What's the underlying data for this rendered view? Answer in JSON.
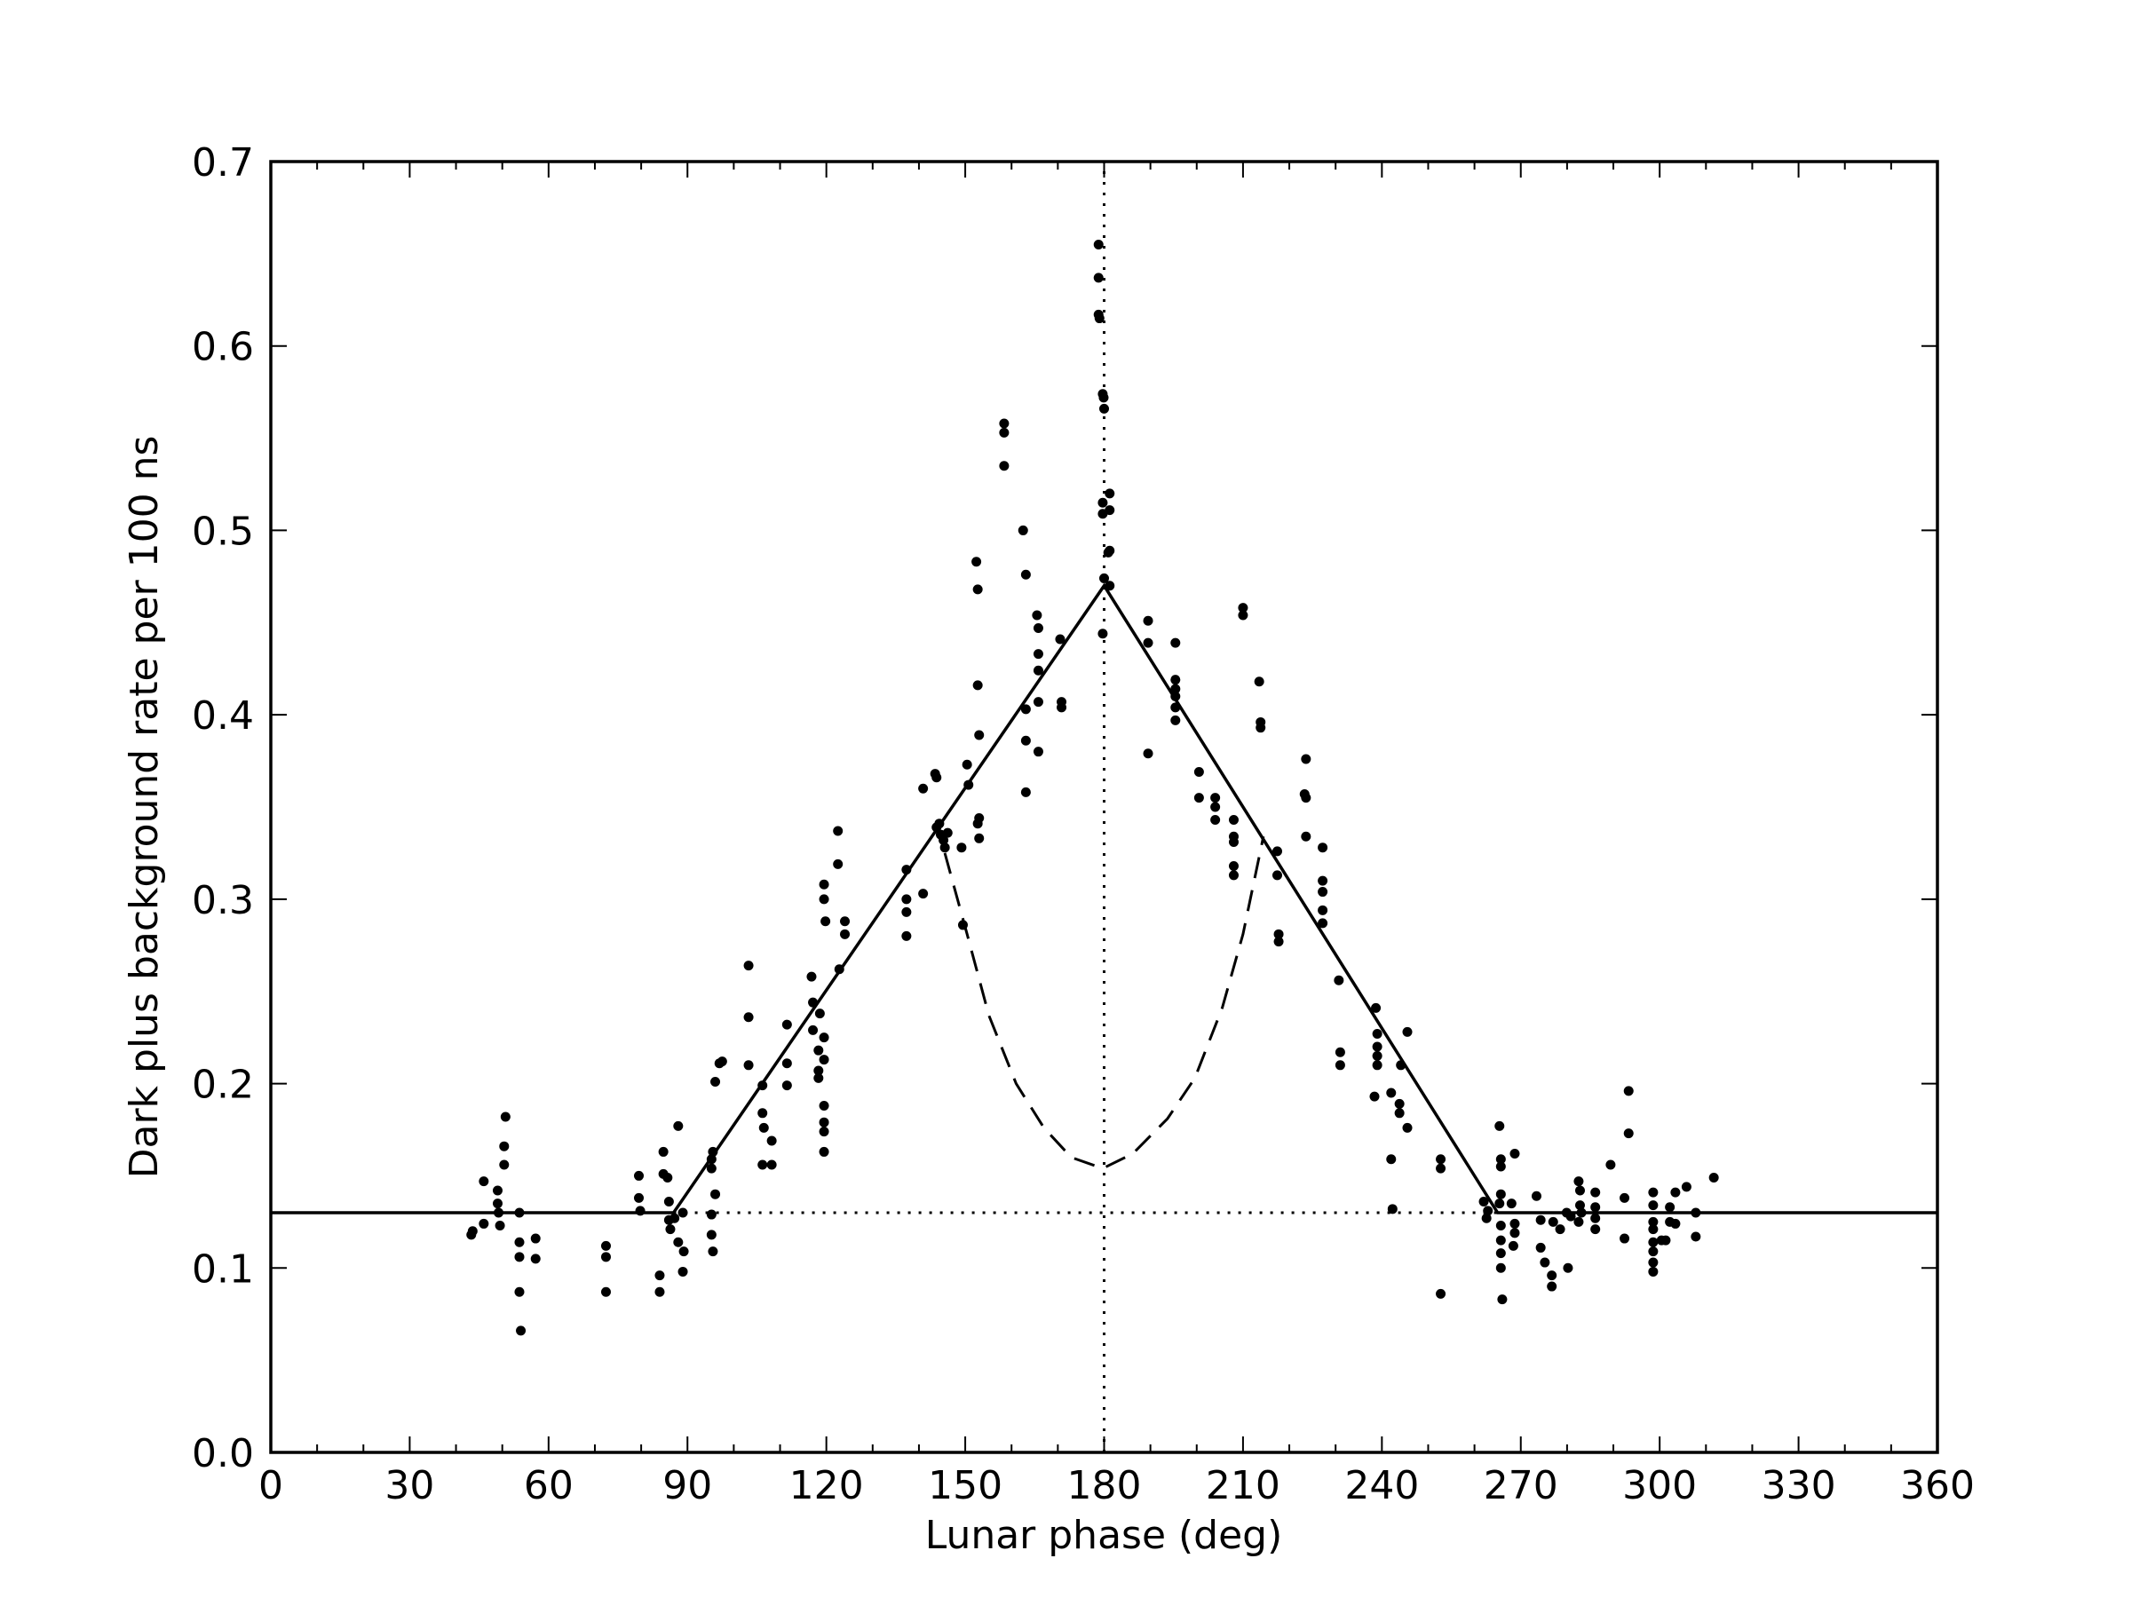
{
  "chart_data": {
    "type": "scatter",
    "xlabel": "Lunar phase (deg)",
    "ylabel": "Dark plus background rate per 100 ns",
    "xlim": [
      0,
      360
    ],
    "ylim": [
      0,
      0.7
    ],
    "xticks": [
      0,
      30,
      60,
      90,
      120,
      150,
      180,
      210,
      240,
      270,
      300,
      330,
      360
    ],
    "xminorticks": [
      10,
      20,
      40,
      50,
      70,
      80,
      100,
      110,
      130,
      140,
      160,
      170,
      190,
      200,
      220,
      230,
      250,
      260,
      280,
      290,
      310,
      320,
      340,
      350
    ],
    "yticks": [
      {
        "value": 0,
        "label": "0.0"
      },
      0.1,
      0.2,
      0.3,
      0.4,
      0.5,
      0.6,
      0.7
    ],
    "series": [
      {
        "style": "points",
        "color": "#000000",
        "x": [
          43.3,
          43.6,
          46,
          46,
          49,
          49,
          49.2,
          49.5,
          50.7,
          50.4,
          50.4,
          53.7,
          53.7,
          53.7,
          53.7,
          54,
          57.2,
          57.2,
          72.4,
          72.4,
          72.4,
          79.5,
          79.5,
          79.8,
          84,
          84,
          84.8,
          84.8,
          85.7,
          86,
          86,
          86.3,
          87.2,
          88,
          88,
          89,
          89.2,
          89,
          95.2,
          95.2,
          95.5,
          96,
          95.2,
          95.2,
          95.5,
          96,
          96.9,
          97.5,
          103.2,
          103.2,
          103.2,
          106.2,
          106.2,
          106.5,
          106.2,
          108.2,
          108.2,
          111.5,
          111.5,
          111.5,
          116.8,
          117.1,
          117.1,
          118.6,
          118.3,
          118.3,
          118.3,
          119.5,
          119.5,
          119.8,
          119.5,
          119.5,
          119.5,
          119.5,
          119.5,
          119.5,
          122.5,
          122.5,
          122.8,
          124,
          124,
          137.3,
          137.3,
          137.3,
          137.3,
          140.9,
          140.9,
          143.5,
          143.8,
          143.8,
          144.4,
          144.7,
          145.3,
          146.2,
          145.6,
          149.2,
          149.5,
          150.4,
          150.7,
          152.4,
          152.7,
          152.7,
          153,
          153,
          152.7,
          153,
          158.4,
          158.4,
          158.4,
          162.5,
          163.1,
          163.1,
          163.1,
          163.1,
          165.5,
          165.8,
          165.8,
          165.8,
          165.8,
          165.8,
          170.5,
          170.8,
          170.8,
          178.8,
          178.8,
          178.8,
          179,
          179.7,
          179.9,
          180,
          179.7,
          179.7,
          181.2,
          181.2,
          180.9,
          181.2,
          180,
          181.2,
          179.7,
          189.5,
          189.5,
          189.5,
          195.4,
          195.4,
          195.4,
          195.4,
          195.4,
          195.4,
          200.5,
          200.5,
          204,
          204,
          204,
          208,
          208,
          208,
          208,
          208,
          210,
          210,
          213.5,
          213.8,
          213.8,
          217.4,
          217.4,
          217.7,
          217.7,
          223.3,
          223.6,
          223.6,
          223.6,
          227.2,
          227.2,
          227.2,
          227.2,
          227.2,
          230.7,
          231,
          231,
          238.7,
          239,
          239,
          239,
          239,
          238.4,
          242,
          242,
          242.3,
          243.8,
          244.1,
          243.8,
          245.5,
          245.5,
          252.7,
          252.7,
          252.7,
          262,
          262.6,
          262.9,
          265.4,
          265.7,
          265.7,
          265.7,
          265.4,
          265.7,
          265.7,
          265.7,
          265.7,
          266,
          268,
          268.7,
          268.7,
          268.7,
          268.4,
          273.4,
          274.3,
          274.3,
          275.2,
          276.7,
          276.7,
          277,
          278.5,
          280.2,
          279.9,
          280.8,
          282.5,
          282.8,
          282.8,
          282.5,
          283.1,
          286.1,
          286.1,
          286.1,
          286.1,
          289.4,
          293.3,
          293.3,
          292.4,
          292.4,
          298.6,
          298.6,
          298.6,
          298.6,
          298.6,
          298.6,
          298.6,
          298.6,
          300.4,
          301.3,
          302.2,
          302.2,
          303.4,
          303.4,
          305.8,
          307.8,
          307.8,
          311.7
        ],
        "values": [
          0.118,
          0.12,
          0.147,
          0.124,
          0.142,
          0.135,
          0.13,
          0.123,
          0.182,
          0.166,
          0.156,
          0.13,
          0.114,
          0.106,
          0.087,
          0.066,
          0.116,
          0.105,
          0.112,
          0.106,
          0.087,
          0.15,
          0.138,
          0.131,
          0.096,
          0.087,
          0.163,
          0.151,
          0.149,
          0.136,
          0.126,
          0.121,
          0.127,
          0.177,
          0.114,
          0.098,
          0.109,
          0.13,
          0.159,
          0.154,
          0.163,
          0.14,
          0.129,
          0.118,
          0.109,
          0.201,
          0.211,
          0.212,
          0.264,
          0.236,
          0.21,
          0.199,
          0.184,
          0.176,
          0.156,
          0.169,
          0.156,
          0.232,
          0.211,
          0.199,
          0.258,
          0.244,
          0.229,
          0.238,
          0.218,
          0.207,
          0.203,
          0.308,
          0.3,
          0.288,
          0.225,
          0.213,
          0.188,
          0.179,
          0.174,
          0.163,
          0.337,
          0.319,
          0.262,
          0.288,
          0.281,
          0.316,
          0.3,
          0.293,
          0.28,
          0.36,
          0.303,
          0.368,
          0.366,
          0.339,
          0.341,
          0.335,
          0.332,
          0.336,
          0.328,
          0.328,
          0.286,
          0.373,
          0.362,
          0.483,
          0.468,
          0.416,
          0.389,
          0.344,
          0.341,
          0.333,
          0.558,
          0.553,
          0.535,
          0.5,
          0.476,
          0.403,
          0.386,
          0.358,
          0.454,
          0.447,
          0.433,
          0.424,
          0.407,
          0.38,
          0.441,
          0.407,
          0.404,
          0.655,
          0.637,
          0.617,
          0.615,
          0.574,
          0.572,
          0.566,
          0.515,
          0.509,
          0.52,
          0.511,
          0.488,
          0.489,
          0.474,
          0.47,
          0.444,
          0.451,
          0.439,
          0.379,
          0.439,
          0.419,
          0.414,
          0.41,
          0.404,
          0.397,
          0.369,
          0.355,
          0.355,
          0.35,
          0.343,
          0.343,
          0.334,
          0.331,
          0.318,
          0.313,
          0.458,
          0.454,
          0.418,
          0.396,
          0.393,
          0.326,
          0.313,
          0.281,
          0.277,
          0.357,
          0.355,
          0.376,
          0.334,
          0.328,
          0.31,
          0.304,
          0.294,
          0.287,
          0.256,
          0.217,
          0.21,
          0.241,
          0.227,
          0.22,
          0.215,
          0.21,
          0.193,
          0.195,
          0.159,
          0.132,
          0.189,
          0.21,
          0.184,
          0.228,
          0.176,
          0.159,
          0.154,
          0.086,
          0.136,
          0.127,
          0.131,
          0.177,
          0.155,
          0.159,
          0.14,
          0.135,
          0.123,
          0.115,
          0.108,
          0.1,
          0.083,
          0.135,
          0.162,
          0.124,
          0.119,
          0.112,
          0.139,
          0.126,
          0.111,
          0.103,
          0.096,
          0.09,
          0.125,
          0.121,
          0.1,
          0.13,
          0.128,
          0.147,
          0.142,
          0.134,
          0.125,
          0.13,
          0.141,
          0.133,
          0.121,
          0.127,
          0.156,
          0.196,
          0.173,
          0.138,
          0.116,
          0.141,
          0.134,
          0.125,
          0.121,
          0.114,
          0.109,
          0.103,
          0.098,
          0.115,
          0.115,
          0.133,
          0.125,
          0.141,
          0.124,
          0.144,
          0.13,
          0.117,
          0.149
        ]
      },
      {
        "style": "solid",
        "color": "#000000",
        "x": [
          0,
          87,
          180,
          265,
          360
        ],
        "values": [
          0.13,
          0.13,
          0.47,
          0.13,
          0.13
        ]
      },
      {
        "style": "dashed",
        "color": "#000000",
        "x": [
          145.6,
          150.4,
          155.1,
          161,
          167,
          172.9,
          179.7,
          186.2,
          193.7,
          199.6,
          205.5,
          210,
          214.4
        ],
        "values": [
          0.325,
          0.281,
          0.237,
          0.2,
          0.176,
          0.16,
          0.154,
          0.162,
          0.181,
          0.203,
          0.241,
          0.281,
          0.334
        ]
      },
      {
        "style": "dotted",
        "color": "#000000",
        "x": [
          87,
          265
        ],
        "values": [
          0.13,
          0.13
        ]
      },
      {
        "style": "dotted",
        "color": "#000000",
        "x": [
          180,
          180
        ],
        "values": [
          0,
          0.7
        ]
      }
    ]
  }
}
